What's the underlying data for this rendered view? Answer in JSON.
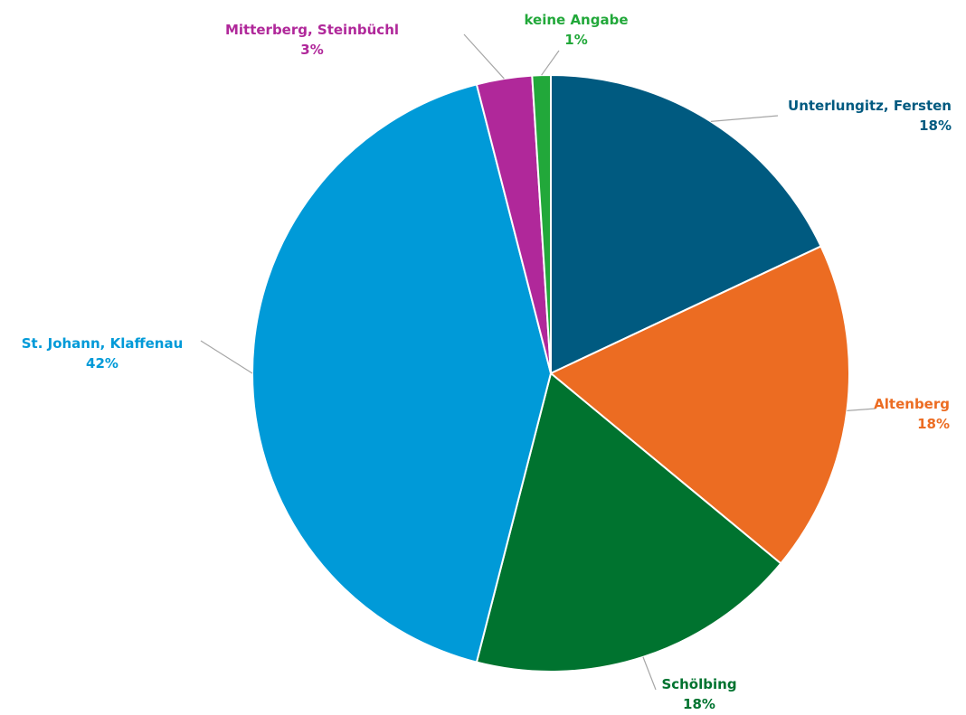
{
  "chart_data": {
    "type": "pie",
    "title": "",
    "slices": [
      {
        "label": "Unterlungitz, Fersten",
        "value": 18,
        "pct_label": "18%",
        "color": "#005a80"
      },
      {
        "label": "Altenberg",
        "value": 18,
        "pct_label": "18%",
        "color": "#ec6c22"
      },
      {
        "label": "Schölbing",
        "value": 18,
        "pct_label": "18%",
        "color": "#00732f"
      },
      {
        "label": "St. Johann, Klaffenau",
        "value": 42,
        "pct_label": "42%",
        "color": "#009ad8"
      },
      {
        "label": "Mitterberg, Steinbüchl",
        "value": 3,
        "pct_label": "3%",
        "color": "#b0289a"
      },
      {
        "label": "keine Angabe",
        "value": 1,
        "pct_label": "1%",
        "color": "#22a83a"
      }
    ]
  }
}
